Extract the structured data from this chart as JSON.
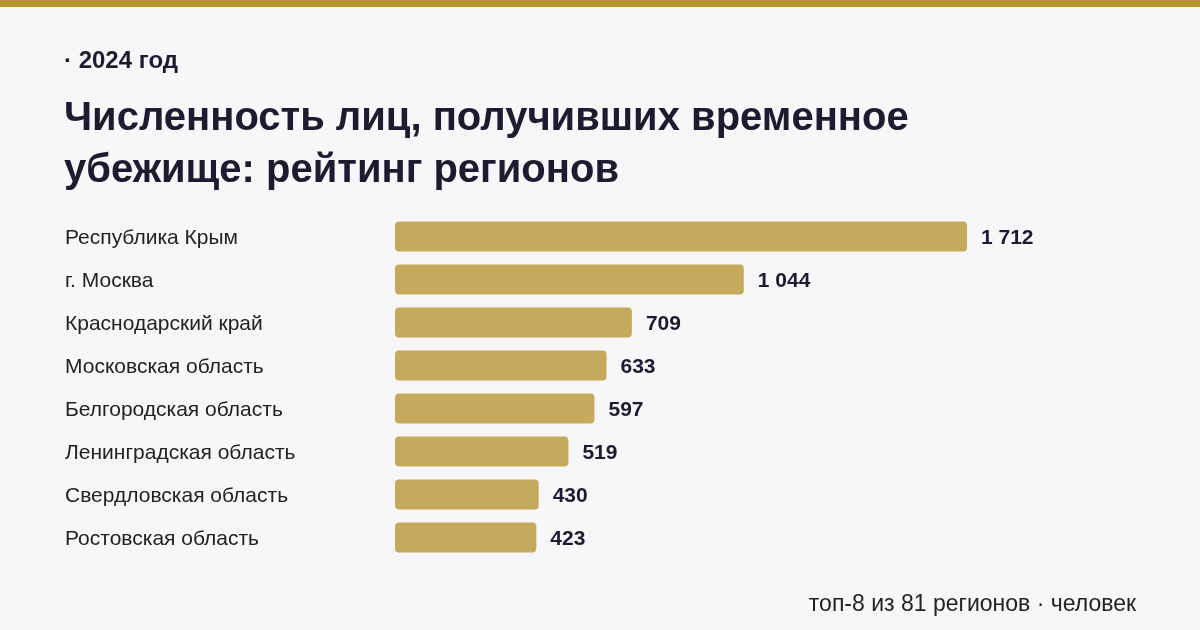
{
  "chart_data": {
    "type": "bar",
    "orientation": "horizontal",
    "title": "Численность лиц, получивших временное убежище: рейтинг регионов",
    "subtitle": "· 2024 год",
    "categories": [
      "Республика Крым",
      "г. Москва",
      "Краснодарский край",
      "Московская область",
      "Белгородская область",
      "Ленинградская область",
      "Свердловская область",
      "Ростовская область"
    ],
    "values": [
      1712,
      1044,
      709,
      633,
      597,
      519,
      430,
      423
    ],
    "value_labels": [
      "1 712",
      "1 044",
      "709",
      "633",
      "597",
      "519",
      "430",
      "423"
    ],
    "color": "#c5a95c",
    "annotations": [
      "топ-8 из 81 регионов · человек"
    ]
  }
}
